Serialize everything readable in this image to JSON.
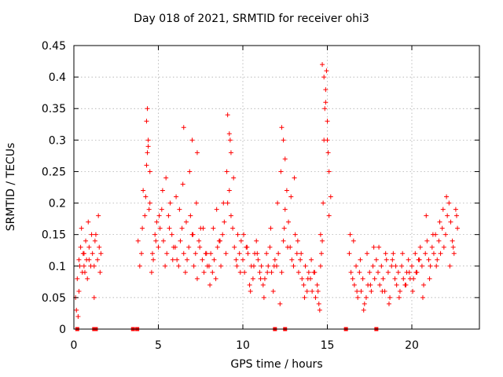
{
  "chart_data": {
    "type": "scatter",
    "title": "Day 018 of 2021, SRMTID for receiver ohi3",
    "xlabel": "GPS time / hours",
    "ylabel": "SRMTID / TECUs",
    "xlim": [
      0,
      24
    ],
    "ylim": [
      0,
      0.45
    ],
    "xticks": [
      0,
      5,
      10,
      15,
      20
    ],
    "xtick_labels": [
      "0",
      "5",
      "10",
      "15",
      "20"
    ],
    "yticks": [
      0,
      0.05,
      0.1,
      0.15,
      0.2,
      0.25,
      0.3,
      0.35,
      0.4,
      0.45
    ],
    "ytick_labels": [
      "0",
      "0.05",
      "0.1",
      "0.15",
      "0.2",
      "0.25",
      "0.3",
      "0.35",
      "0.4",
      "0.45"
    ],
    "grid": true,
    "marker": "+",
    "color": "#ff0000",
    "series": [
      {
        "name": "SRMTID",
        "x": [
          0.1,
          0.15,
          0.2,
          0.3,
          0.35,
          0.4,
          0.5,
          0.55,
          0.6,
          0.7,
          0.75,
          0.8,
          0.9,
          1.0,
          1.1,
          1.2,
          1.3,
          1.4,
          1.5,
          1.55,
          1.6,
          0.25,
          0.45,
          0.65,
          0.85,
          1.05,
          1.25,
          1.45,
          0.3,
          0.6,
          0.9,
          1.2,
          3.8,
          3.9,
          4.0,
          4.1,
          4.2,
          4.3,
          4.35,
          4.4,
          4.5,
          4.6,
          4.7,
          4.8,
          4.9,
          5.0,
          5.1,
          5.2,
          5.3,
          5.4,
          5.5,
          5.6,
          5.7,
          5.8,
          5.9,
          4.05,
          4.25,
          4.45,
          4.65,
          4.85,
          5.05,
          5.25,
          5.45,
          5.65,
          5.85,
          4.3,
          4.35,
          4.4,
          4.5,
          6.0,
          6.1,
          6.2,
          6.3,
          6.4,
          6.5,
          6.6,
          6.7,
          6.8,
          6.9,
          7.0,
          7.1,
          7.2,
          7.3,
          7.4,
          7.5,
          7.6,
          7.7,
          7.8,
          7.9,
          6.05,
          6.25,
          6.45,
          6.65,
          6.85,
          7.05,
          7.25,
          7.45,
          7.65,
          7.85,
          6.5,
          7.0,
          7.3,
          8.0,
          8.1,
          8.2,
          8.3,
          8.4,
          8.5,
          8.6,
          8.7,
          8.8,
          8.9,
          9.0,
          9.1,
          9.2,
          9.3,
          9.4,
          9.5,
          9.6,
          9.7,
          9.8,
          9.9,
          8.05,
          8.25,
          8.45,
          8.65,
          8.85,
          9.05,
          9.25,
          9.45,
          9.65,
          9.85,
          9.1,
          9.2,
          9.3,
          10.0,
          10.1,
          10.2,
          10.3,
          10.4,
          10.5,
          10.6,
          10.7,
          10.8,
          10.9,
          11.0,
          11.1,
          11.2,
          11.3,
          11.4,
          11.5,
          11.6,
          11.7,
          11.8,
          11.9,
          10.05,
          10.25,
          10.45,
          10.65,
          10.85,
          11.05,
          11.25,
          11.45,
          11.65,
          11.85,
          12.0,
          12.1,
          12.2,
          12.3,
          12.4,
          12.5,
          12.6,
          12.7,
          12.8,
          12.9,
          13.0,
          13.1,
          13.2,
          13.3,
          13.4,
          13.5,
          13.6,
          13.7,
          13.8,
          13.9,
          12.05,
          12.25,
          12.45,
          12.65,
          12.85,
          13.05,
          13.25,
          13.45,
          13.65,
          13.85,
          12.4,
          12.5,
          12.3,
          14.0,
          14.1,
          14.2,
          14.3,
          14.4,
          14.5,
          14.6,
          14.65,
          14.7,
          14.75,
          14.8,
          14.85,
          14.9,
          14.95,
          15.0,
          15.05,
          15.1,
          15.2,
          14.05,
          14.25,
          14.45,
          14.55,
          14.6,
          14.7,
          14.8,
          14.9,
          15.0,
          15.1,
          16.3,
          16.4,
          16.5,
          16.6,
          16.7,
          16.8,
          16.9,
          17.0,
          17.1,
          17.2,
          17.3,
          17.4,
          17.5,
          17.6,
          17.7,
          17.8,
          17.9,
          16.35,
          16.55,
          16.75,
          16.95,
          17.15,
          17.35,
          17.55,
          17.75,
          18.0,
          18.1,
          18.2,
          18.3,
          18.4,
          18.5,
          18.6,
          18.7,
          18.8,
          18.9,
          19.0,
          19.1,
          19.2,
          19.3,
          19.4,
          19.5,
          19.6,
          19.7,
          19.8,
          19.9,
          18.05,
          18.25,
          18.45,
          18.65,
          18.85,
          19.05,
          19.25,
          19.45,
          19.65,
          19.85,
          20.0,
          20.1,
          20.2,
          20.3,
          20.4,
          20.5,
          20.6,
          20.7,
          20.8,
          20.9,
          21.0,
          21.1,
          21.2,
          21.3,
          21.4,
          21.5,
          21.6,
          21.7,
          21.8,
          21.9,
          20.05,
          20.25,
          20.45,
          20.65,
          20.85,
          21.05,
          21.25,
          21.45,
          21.65,
          21.85,
          22.0,
          22.1,
          22.2,
          22.3,
          22.4,
          22.5,
          22.6,
          22.7,
          22.05,
          22.25,
          22.45,
          22.65
        ],
        "y": [
          0.05,
          0.03,
          0.08,
          0.11,
          0.1,
          0.13,
          0.09,
          0.12,
          0.1,
          0.14,
          0.11,
          0.08,
          0.13,
          0.1,
          0.12,
          0.05,
          0.15,
          0.11,
          0.13,
          0.09,
          0.12,
          0.02,
          0.16,
          0.09,
          0.17,
          0.15,
          0.14,
          0.18,
          0.06,
          0.12,
          0.11,
          0.1,
          0.14,
          0.1,
          0.12,
          0.22,
          0.18,
          0.26,
          0.28,
          0.3,
          0.2,
          0.09,
          0.11,
          0.15,
          0.17,
          0.13,
          0.16,
          0.19,
          0.14,
          0.1,
          0.12,
          0.18,
          0.2,
          0.15,
          0.13,
          0.16,
          0.21,
          0.19,
          0.12,
          0.14,
          0.18,
          0.22,
          0.24,
          0.16,
          0.11,
          0.33,
          0.35,
          0.29,
          0.25,
          0.13,
          0.11,
          0.1,
          0.14,
          0.16,
          0.12,
          0.09,
          0.11,
          0.13,
          0.18,
          0.15,
          0.1,
          0.12,
          0.08,
          0.14,
          0.16,
          0.11,
          0.09,
          0.12,
          0.1,
          0.21,
          0.19,
          0.23,
          0.17,
          0.25,
          0.15,
          0.2,
          0.13,
          0.16,
          0.12,
          0.32,
          0.3,
          0.28,
          0.1,
          0.12,
          0.09,
          0.11,
          0.08,
          0.13,
          0.14,
          0.1,
          0.15,
          0.17,
          0.12,
          0.2,
          0.22,
          0.18,
          0.16,
          0.13,
          0.11,
          0.15,
          0.12,
          0.14,
          0.07,
          0.16,
          0.19,
          0.14,
          0.2,
          0.25,
          0.3,
          0.24,
          0.1,
          0.09,
          0.34,
          0.31,
          0.28,
          0.11,
          0.09,
          0.13,
          0.12,
          0.07,
          0.1,
          0.08,
          0.12,
          0.14,
          0.11,
          0.09,
          0.1,
          0.07,
          0.08,
          0.12,
          0.1,
          0.13,
          0.09,
          0.06,
          0.11,
          0.15,
          0.13,
          0.06,
          0.1,
          0.12,
          0.08,
          0.05,
          0.09,
          0.16,
          0.1,
          0.1,
          0.12,
          0.04,
          0.09,
          0.14,
          0.19,
          0.22,
          0.17,
          0.13,
          0.11,
          0.1,
          0.15,
          0.12,
          0.09,
          0.11,
          0.08,
          0.07,
          0.1,
          0.06,
          0.09,
          0.2,
          0.25,
          0.16,
          0.13,
          0.21,
          0.24,
          0.14,
          0.12,
          0.05,
          0.08,
          0.3,
          0.27,
          0.32,
          0.08,
          0.06,
          0.09,
          0.05,
          0.07,
          0.04,
          0.1,
          0.12,
          0.14,
          0.2,
          0.3,
          0.35,
          0.38,
          0.41,
          0.33,
          0.28,
          0.25,
          0.21,
          0.11,
          0.09,
          0.06,
          0.03,
          0.15,
          0.42,
          0.4,
          0.36,
          0.3,
          0.18,
          0.12,
          0.09,
          0.08,
          0.07,
          0.1,
          0.05,
          0.09,
          0.06,
          0.08,
          0.04,
          0.05,
          0.07,
          0.09,
          0.06,
          0.1,
          0.08,
          0.11,
          0.15,
          0.14,
          0.06,
          0.11,
          0.03,
          0.12,
          0.07,
          0.13,
          0.09,
          0.07,
          0.1,
          0.08,
          0.06,
          0.11,
          0.09,
          0.05,
          0.1,
          0.12,
          0.08,
          0.07,
          0.09,
          0.06,
          0.1,
          0.08,
          0.07,
          0.09,
          0.11,
          0.08,
          0.13,
          0.06,
          0.12,
          0.04,
          0.11,
          0.1,
          0.05,
          0.12,
          0.07,
          0.09,
          0.1,
          0.08,
          0.12,
          0.09,
          0.11,
          0.13,
          0.1,
          0.07,
          0.12,
          0.14,
          0.11,
          0.1,
          0.13,
          0.12,
          0.15,
          0.11,
          0.14,
          0.12,
          0.16,
          0.13,
          0.06,
          0.09,
          0.11,
          0.05,
          0.18,
          0.08,
          0.15,
          0.1,
          0.17,
          0.19,
          0.15,
          0.18,
          0.2,
          0.17,
          0.14,
          0.12,
          0.19,
          0.16,
          0.21,
          0.1,
          0.13,
          0.18
        ]
      }
    ],
    "bottom_markers_x": [
      0.2,
      1.2,
      1.3,
      3.5,
      3.75,
      11.9,
      12.5,
      16.1,
      17.9
    ]
  }
}
